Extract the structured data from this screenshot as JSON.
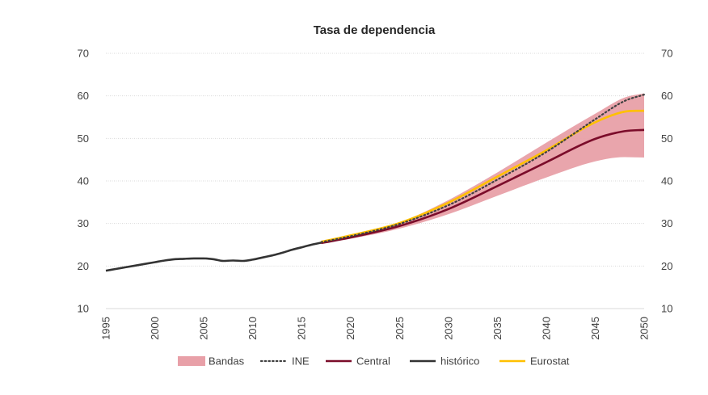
{
  "chart_data": {
    "type": "line",
    "title": "Tasa de dependencia",
    "xlabel": "",
    "ylabel": "",
    "xlim": [
      1995,
      2050
    ],
    "ylim": [
      10,
      70
    ],
    "x_ticks": [
      "1995",
      "2000",
      "2005",
      "2010",
      "2015",
      "2020",
      "2025",
      "2030",
      "2035",
      "2040",
      "2045",
      "2050"
    ],
    "y_ticks": [
      "10",
      "20",
      "30",
      "40",
      "50",
      "60",
      "70"
    ],
    "grid": true,
    "legend_position": "bottom",
    "legend": [
      "Bandas",
      "INE",
      "Central",
      "histórico",
      "Eurostat"
    ],
    "colors": {
      "bandas": "#e8a0a8",
      "ine": "#404040",
      "central": "#7b0c2a",
      "historico": "#333333",
      "eurostat": "#ffc000"
    },
    "series": [
      {
        "name": "histórico",
        "x": [
          1995,
          1996,
          1997,
          1998,
          1999,
          2000,
          2001,
          2002,
          2003,
          2004,
          2005,
          2006,
          2007,
          2008,
          2009,
          2010,
          2011,
          2012,
          2013,
          2014,
          2015,
          2016,
          2017
        ],
        "y": [
          18.9,
          19.3,
          19.7,
          20.1,
          20.5,
          20.9,
          21.3,
          21.6,
          21.7,
          21.8,
          21.8,
          21.6,
          21.2,
          21.3,
          21.2,
          21.5,
          22.0,
          22.5,
          23.1,
          23.8,
          24.4,
          25.0,
          25.5
        ]
      },
      {
        "name": "Central",
        "x": [
          2017,
          2020,
          2025,
          2030,
          2035,
          2040,
          2045,
          2048,
          2050
        ],
        "y": [
          25.4,
          26.7,
          29.4,
          33.4,
          38.8,
          44.4,
          49.9,
          51.7,
          52.0
        ]
      },
      {
        "name": "INE",
        "x": [
          2017,
          2020,
          2025,
          2030,
          2035,
          2040,
          2045,
          2048,
          2050
        ],
        "y": [
          25.6,
          27.0,
          29.9,
          34.3,
          40.3,
          46.8,
          54.5,
          58.8,
          60.3
        ]
      },
      {
        "name": "Eurostat",
        "x": [
          2017,
          2020,
          2025,
          2030,
          2035,
          2040,
          2045,
          2048,
          2050
        ],
        "y": [
          25.7,
          27.2,
          30.1,
          34.9,
          41.0,
          47.2,
          53.8,
          56.3,
          56.5
        ]
      },
      {
        "name": "Bandas",
        "x": [
          2017,
          2020,
          2025,
          2030,
          2035,
          2040,
          2045,
          2048,
          2050
        ],
        "lower": [
          25.3,
          26.4,
          28.8,
          32.2,
          36.5,
          40.8,
          44.6,
          45.6,
          45.5
        ],
        "upper": [
          25.5,
          26.9,
          30.2,
          35.5,
          42.0,
          49.0,
          55.8,
          59.6,
          60.6
        ]
      }
    ]
  }
}
